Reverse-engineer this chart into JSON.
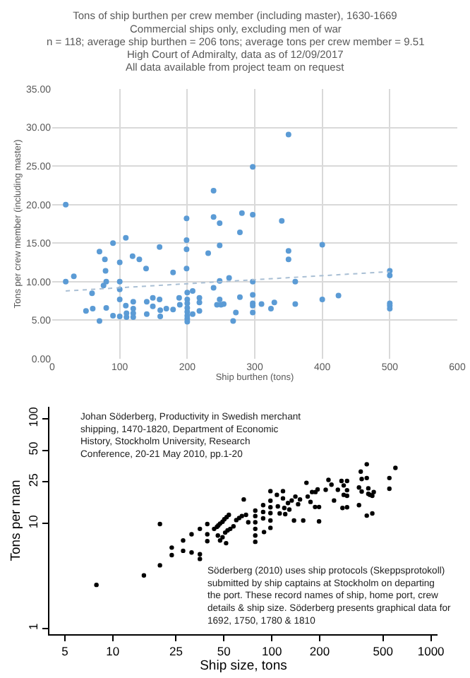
{
  "chart_data": [
    {
      "type": "scatter",
      "title": "Tons of ship burthen per crew member (including master), 1630-1669",
      "subtitle": "Commercial ships only, excluding men of war",
      "annotations": [
        "n = 118; average ship burthen = 206 tons; average tons per crew member = 9.51",
        "High Court of Admiralty, data as of 12/09/2017",
        "All data available from project team on request"
      ],
      "xlabel": "Ship burthen (tons)",
      "ylabel": "Tons per crew member (including master)",
      "xlim": [
        0,
        600
      ],
      "xticks": [
        0,
        100,
        200,
        300,
        400,
        500,
        600
      ],
      "ylim": [
        0,
        35
      ],
      "yticks": [
        {
          "value": 0,
          "label": "0.00"
        },
        {
          "value": 5,
          "label": "5.00"
        },
        {
          "value": 10,
          "label": "10.00"
        },
        {
          "value": 15,
          "label": "15.00"
        },
        {
          "value": 20,
          "label": "20.00"
        },
        {
          "value": 25,
          "label": "25.00"
        },
        {
          "value": 30,
          "label": "30.00"
        },
        {
          "value": 35,
          "label": "35.00"
        }
      ],
      "grid": true,
      "series": [
        {
          "color": "#5b9bd5",
          "marker": "circle",
          "x": [
            20,
            20,
            32,
            50,
            59,
            60,
            70,
            70,
            78,
            79,
            76,
            80,
            80,
            90,
            90,
            100,
            100,
            100,
            100,
            100,
            109,
            109,
            110,
            110,
            119,
            120,
            120,
            120,
            120,
            129,
            139,
            140,
            140,
            149,
            149,
            159,
            159,
            160,
            160,
            169,
            179,
            179,
            188,
            189,
            199,
            199,
            199,
            199,
            200,
            200,
            200,
            200,
            200,
            200,
            200,
            200,
            208,
            208,
            218,
            218,
            218,
            231,
            239,
            239,
            239,
            248,
            248,
            248,
            248,
            244,
            250,
            254,
            262,
            268,
            272,
            278,
            278,
            281,
            297,
            297,
            297,
            297,
            297,
            297,
            297,
            310,
            329,
            324,
            340,
            350,
            350,
            350,
            360,
            360,
            400,
            400,
            424,
            500,
            500,
            500,
            500,
            500
          ],
          "values": [
            20.0,
            10.0,
            10.7,
            6.2,
            8.5,
            6.5,
            13.9,
            4.9,
            12.9,
            11.4,
            9.5,
            10.0,
            6.6,
            15.0,
            5.6,
            12.5,
            10.0,
            9.0,
            7.7,
            5.5,
            15.7,
            6.9,
            5.9,
            5.4,
            13.3,
            7.4,
            6.5,
            5.9,
            5.4,
            12.9,
            11.7,
            7.4,
            5.8,
            7.9,
            6.8,
            14.5,
            7.7,
            6.3,
            5.5,
            6.5,
            11.2,
            6.4,
            7.9,
            7.0,
            18.2,
            15.4,
            14.2,
            11.7,
            8.6,
            7.7,
            7.2,
            6.6,
            6.1,
            5.6,
            5.2,
            4.8,
            8.8,
            5.8,
            7.9,
            7.3,
            6.2,
            13.7,
            21.8,
            18.4,
            9.2,
            17.6,
            14.7,
            10.1,
            7.7,
            7.0,
            7.0,
            7.1,
            10.5,
            4.9,
            6.0,
            8.0,
            16.4,
            18.9,
            24.9,
            18.7,
            10.0,
            8.3,
            7.2,
            6.9,
            6.0,
            7.1,
            7.3,
            6.5,
            17.9,
            29.1,
            14.0,
            12.9,
            10.0,
            7.1,
            14.8,
            7.7,
            8.2,
            11.4,
            10.8,
            7.2,
            6.9,
            6.5
          ]
        },
        {
          "type": "line",
          "color": "#a9bfd4",
          "line_style": "dotted",
          "x": [
            20,
            500
          ],
          "values": [
            8.8,
            11.3
          ]
        }
      ]
    },
    {
      "type": "scatter",
      "xlabel": "Ship size, tons",
      "ylabel": "Tons per man",
      "log": "xy",
      "annotations": [
        "Johan Söderberg, Productivity in Swedish merchant\nshipping, 1470-1820, Department of Economic\nHistory, Stockholm University, Research\nConference, 20-21 May 2010, pp.1-20",
        "Söderberg (2010) uses ship protocols (Skeppsprotokoll)\nsubmitted by ship captains at Stockholm on departing\nthe port. These record names of ship, home port, crew\ndetails & ship size. Söderberg presents graphical data for\n1692, 1750, 1780 & 1810"
      ],
      "xlim": [
        4,
        1100
      ],
      "xticks": [
        5,
        10,
        25,
        50,
        100,
        200,
        500,
        1000
      ],
      "ylim": [
        0.88,
        130
      ],
      "yticks": [
        1,
        10,
        25,
        50,
        100
      ],
      "series": [
        {
          "color": "#000000",
          "marker": "circle",
          "x": [
            7.9,
            15.7,
            19.8,
            19.8,
            23.5,
            23.5,
            27.7,
            27.7,
            31.3,
            31.3,
            35.3,
            35.3,
            35.3,
            39.3,
            39.3,
            39.3,
            43.4,
            45.2,
            46.1,
            47.3,
            49.0,
            50.3,
            52.0,
            53.7,
            45.8,
            47.3,
            49.0,
            50.9,
            52.7,
            54.8,
            57.4,
            51.6,
            59.8,
            62.3,
            64.8,
            66.6,
            68.8,
            71.1,
            78.7,
            78.7,
            78.7,
            78.7,
            78.7,
            78.7,
            88.2,
            88.2,
            88.2,
            89.3,
            98,
            98,
            98,
            98,
            98,
            98,
            107.6,
            109.1,
            112,
            117.5,
            117.5,
            119.8,
            121.4,
            126.3,
            128.8,
            133.3,
            137.8,
            140.6,
            146.3,
            150.3,
            157.5,
            165,
            168,
            175,
            179,
            188,
            194,
            198,
            198,
            187,
            218,
            227,
            237,
            246,
            260,
            274,
            283,
            283,
            278,
            297,
            297,
            297,
            297,
            353,
            353,
            367,
            367,
            395,
            362,
            395,
            404,
            404,
            414,
            428,
            437,
            428,
            395,
            548,
            548,
            598
          ],
          "values": [
            2.6,
            3.2,
            4.0,
            9.9,
            5.9,
            5.0,
            6.9,
            5.5,
            7.9,
            5.3,
            8.9,
            5.1,
            4.6,
            9.9,
            7.9,
            6.8,
            8.9,
            9.3,
            9.6,
            10.0,
            10.4,
            11.0,
            11.5,
            12.1,
            7.7,
            6.9,
            7.4,
            8.2,
            8.6,
            8.9,
            9.4,
            6.5,
            10.8,
            11.3,
            11.8,
            17.0,
            12.1,
            10.3,
            13.3,
            11.8,
            10.3,
            8.9,
            7.7,
            6.7,
            15.0,
            12.9,
            11.2,
            8.3,
            20.4,
            16.5,
            14.3,
            12.6,
            10.7,
            9.1,
            18.8,
            14.6,
            12.5,
            20.4,
            17.4,
            14.1,
            12.3,
            15.7,
            13.6,
            16.6,
            10.7,
            18.1,
            15.3,
            17.0,
            10.7,
            24.5,
            18.1,
            16.1,
            20.0,
            20.0,
            21.2,
            14.4,
            10.5,
            14.4,
            21.0,
            26.1,
            23.5,
            16.6,
            21.0,
            25.5,
            23.1,
            18.8,
            14.1,
            25.5,
            20.8,
            18.4,
            14.3,
            15.0,
            22.1,
            26.6,
            20.2,
            36.8,
            31.3,
            27.2,
            21.7,
            19.2,
            18.8,
            18.4,
            20.0,
            12.5,
            11.9,
            27.2,
            21.5,
            34.0
          ]
        }
      ]
    }
  ]
}
